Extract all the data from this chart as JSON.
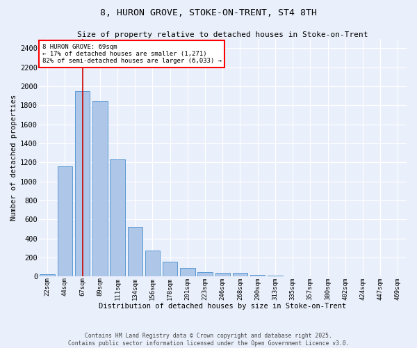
{
  "title": "8, HURON GROVE, STOKE-ON-TRENT, ST4 8TH",
  "subtitle": "Size of property relative to detached houses in Stoke-on-Trent",
  "xlabel": "Distribution of detached houses by size in Stoke-on-Trent",
  "ylabel": "Number of detached properties",
  "bin_labels": [
    "22sqm",
    "44sqm",
    "67sqm",
    "89sqm",
    "111sqm",
    "134sqm",
    "156sqm",
    "178sqm",
    "201sqm",
    "223sqm",
    "246sqm",
    "268sqm",
    "290sqm",
    "313sqm",
    "335sqm",
    "357sqm",
    "380sqm",
    "402sqm",
    "424sqm",
    "447sqm",
    "469sqm"
  ],
  "bar_values": [
    25,
    1160,
    1950,
    1850,
    1230,
    520,
    275,
    155,
    90,
    45,
    40,
    35,
    15,
    8,
    4,
    3,
    2,
    2,
    1,
    1,
    2
  ],
  "bar_color": "#aec6e8",
  "bar_edge_color": "#5b9bd5",
  "property_bin_index": 2,
  "annotation_title": "8 HURON GROVE: 69sqm",
  "annotation_line1": "← 17% of detached houses are smaller (1,271)",
  "annotation_line2": "82% of semi-detached houses are larger (6,033) →",
  "vline_color": "#cc0000",
  "ylim": [
    0,
    2500
  ],
  "yticks": [
    0,
    200,
    400,
    600,
    800,
    1000,
    1200,
    1400,
    1600,
    1800,
    2000,
    2200,
    2400
  ],
  "background_color": "#eaf0fb",
  "grid_color": "#ffffff",
  "footer_line1": "Contains HM Land Registry data © Crown copyright and database right 2025.",
  "footer_line2": "Contains public sector information licensed under the Open Government Licence v3.0."
}
